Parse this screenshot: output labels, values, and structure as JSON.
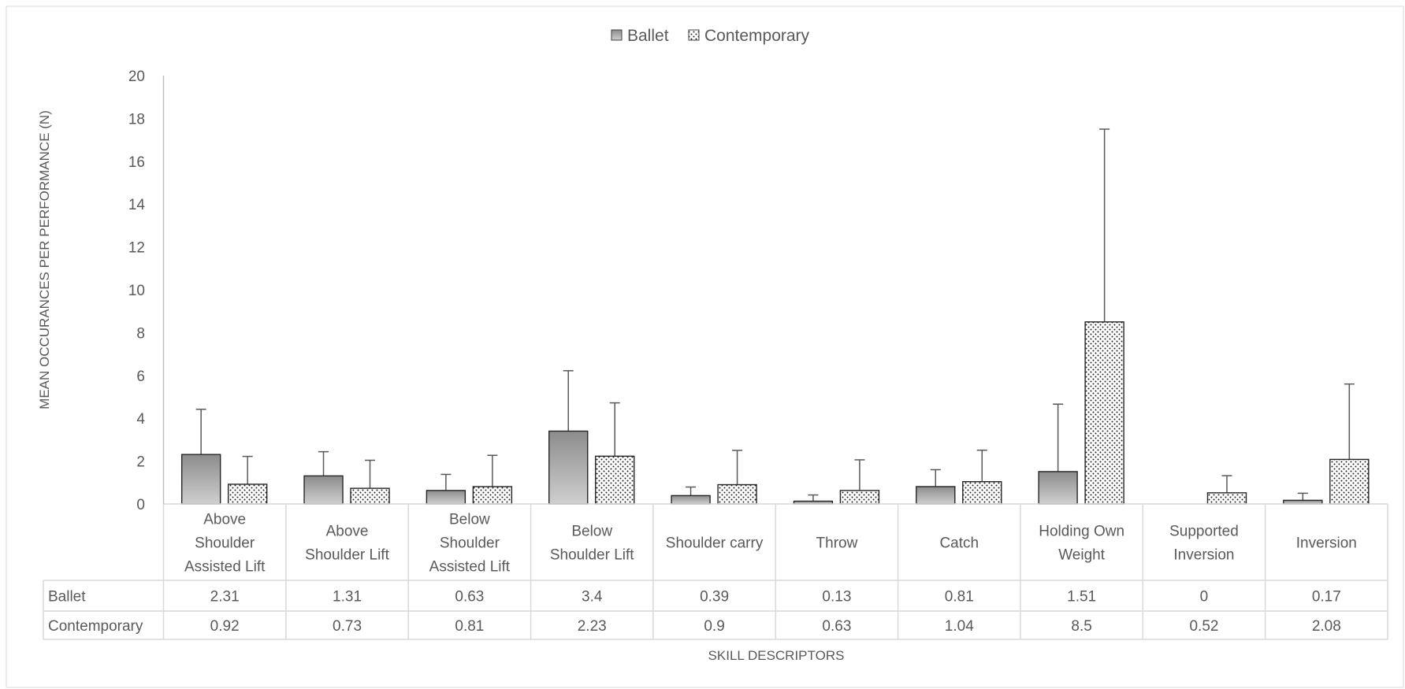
{
  "chart_data": {
    "type": "bar",
    "categories": [
      [
        "Above",
        "Shoulder",
        "Assisted Lift"
      ],
      [
        "Above",
        "Shoulder Lift"
      ],
      [
        "Below",
        "Shoulder",
        "Assisted Lift"
      ],
      [
        "Below",
        "Shoulder Lift"
      ],
      [
        "Shoulder carry"
      ],
      [
        "Throw"
      ],
      [
        "Catch"
      ],
      [
        "Holding Own",
        "Weight"
      ],
      [
        "Supported",
        "Inversion"
      ],
      [
        "Inversion"
      ]
    ],
    "series": [
      {
        "name": "Ballet",
        "values": [
          2.31,
          1.31,
          0.63,
          3.4,
          0.39,
          0.13,
          0.81,
          1.51,
          0,
          0.17
        ],
        "error_upper": [
          4.42,
          2.44,
          1.38,
          6.22,
          0.79,
          0.42,
          1.6,
          4.66,
          0,
          0.5
        ],
        "fill": "#a6a6a6",
        "pattern": "gradient"
      },
      {
        "name": "Contemporary",
        "values": [
          0.92,
          0.73,
          0.81,
          2.23,
          0.9,
          0.63,
          1.04,
          8.5,
          0.52,
          2.08
        ],
        "error_upper": [
          2.22,
          2.04,
          2.27,
          4.72,
          2.5,
          2.06,
          2.51,
          17.5,
          1.32,
          5.6
        ],
        "fill": "#ffffff",
        "pattern": "dots"
      }
    ],
    "data_table": {
      "rows": [
        {
          "label": "Ballet",
          "cells": [
            "2.31",
            "1.31",
            "0.63",
            "3.4",
            "0.39",
            "0.13",
            "0.81",
            "1.51",
            "0",
            "0.17"
          ]
        },
        {
          "label": "Contemporary",
          "cells": [
            "0.92",
            "0.73",
            "0.81",
            "2.23",
            "0.9",
            "0.63",
            "1.04",
            "8.5",
            "0.52",
            "2.08"
          ]
        }
      ]
    },
    "xlabel": "SKILL DESCRIPTORS",
    "ylabel": "MEAN OCCURANCES PER PERFORMANCE (N)",
    "ylim": [
      0,
      20
    ],
    "yticks": [
      0,
      2,
      4,
      6,
      8,
      10,
      12,
      14,
      16,
      18,
      20
    ],
    "legend_position": "top-center",
    "grid": false
  }
}
